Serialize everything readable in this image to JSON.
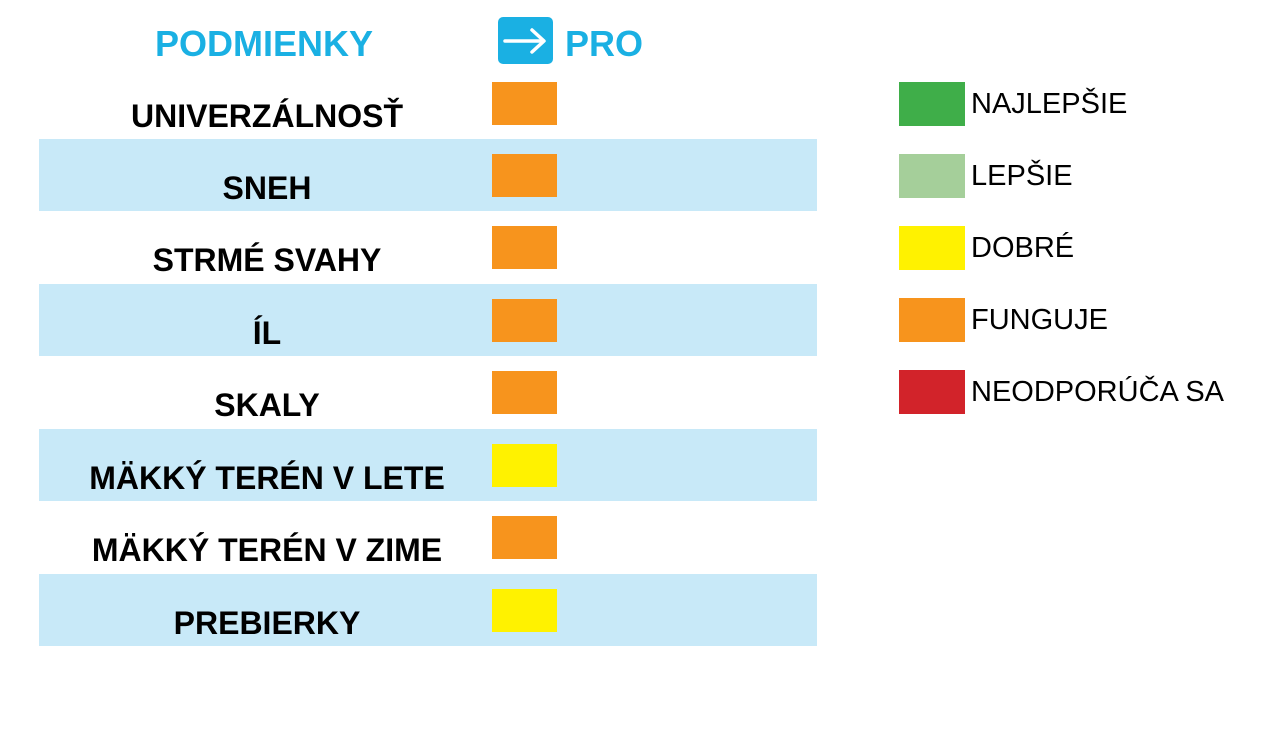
{
  "header": {
    "conditions_label": "PODMIENKY",
    "product_label": "PRO",
    "product_icon": "arrow-right-icon",
    "accent_color": "#1ab0e3"
  },
  "rows": [
    {
      "label": "UNIVERZÁLNOSŤ",
      "rating": "FUNGUJE",
      "color": "#f7941d"
    },
    {
      "label": "SNEH",
      "rating": "FUNGUJE",
      "color": "#f7941d"
    },
    {
      "label": "STRMÉ SVAHY",
      "rating": "FUNGUJE",
      "color": "#f7941d"
    },
    {
      "label": "ÍL",
      "rating": "FUNGUJE",
      "color": "#f7941d"
    },
    {
      "label": "SKALY",
      "rating": "FUNGUJE",
      "color": "#f7941d"
    },
    {
      "label": "MÄKKÝ TERÉN V LETE",
      "rating": "DOBRÉ",
      "color": "#fff200"
    },
    {
      "label": "MÄKKÝ TERÉN V ZIME",
      "rating": "FUNGUJE",
      "color": "#f7941d"
    },
    {
      "label": "PREBIERKY",
      "rating": "DOBRÉ",
      "color": "#fff200"
    }
  ],
  "row_band_color": "#c8e9f8",
  "legend": [
    {
      "label": "NAJLEPŠIE",
      "color": "#3fae49"
    },
    {
      "label": "LEPŠIE",
      "color": "#a5cf9a"
    },
    {
      "label": "DOBRÉ",
      "color": "#fff200"
    },
    {
      "label": "FUNGUJE",
      "color": "#f7941d"
    },
    {
      "label": "NEODPORÚČA SA",
      "color": "#d2232a"
    }
  ]
}
